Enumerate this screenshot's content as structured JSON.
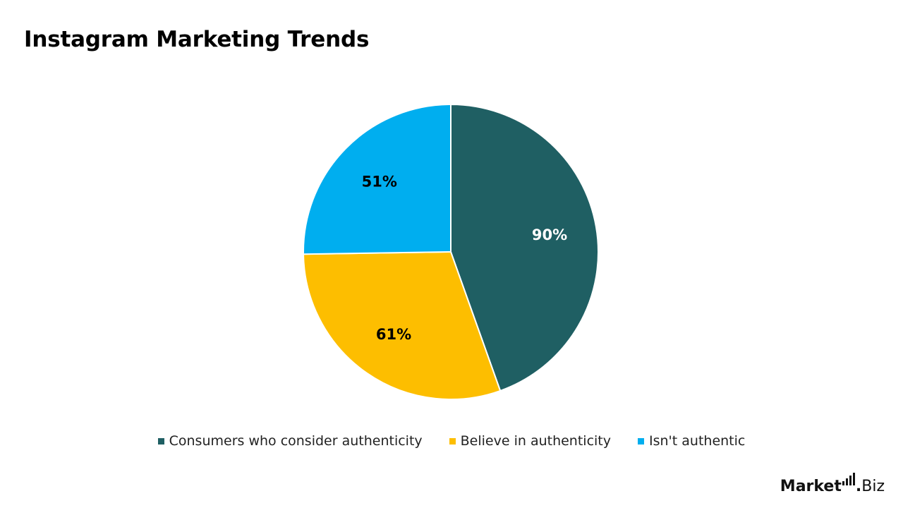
{
  "chart_data": {
    "type": "pie",
    "title": "Instagram Marketing Trends",
    "slices": [
      {
        "label": "Consumers who consider authenticity",
        "value": 90,
        "display": "90%",
        "color": "#1F5F63",
        "label_color": "#ffffff"
      },
      {
        "label": "Believe in authenticity",
        "value": 61,
        "display": "61%",
        "color": "#FDBE00",
        "label_color": "#000000"
      },
      {
        "label": "Isn't authentic",
        "value": 51,
        "display": "51%",
        "color": "#00AEEF",
        "label_color": "#000000"
      }
    ],
    "start_angle_deg": 0,
    "direction": "clockwise",
    "legend_position": "bottom"
  },
  "logo": {
    "main": "Market",
    "dot": ".",
    "suffix": "Biz"
  }
}
